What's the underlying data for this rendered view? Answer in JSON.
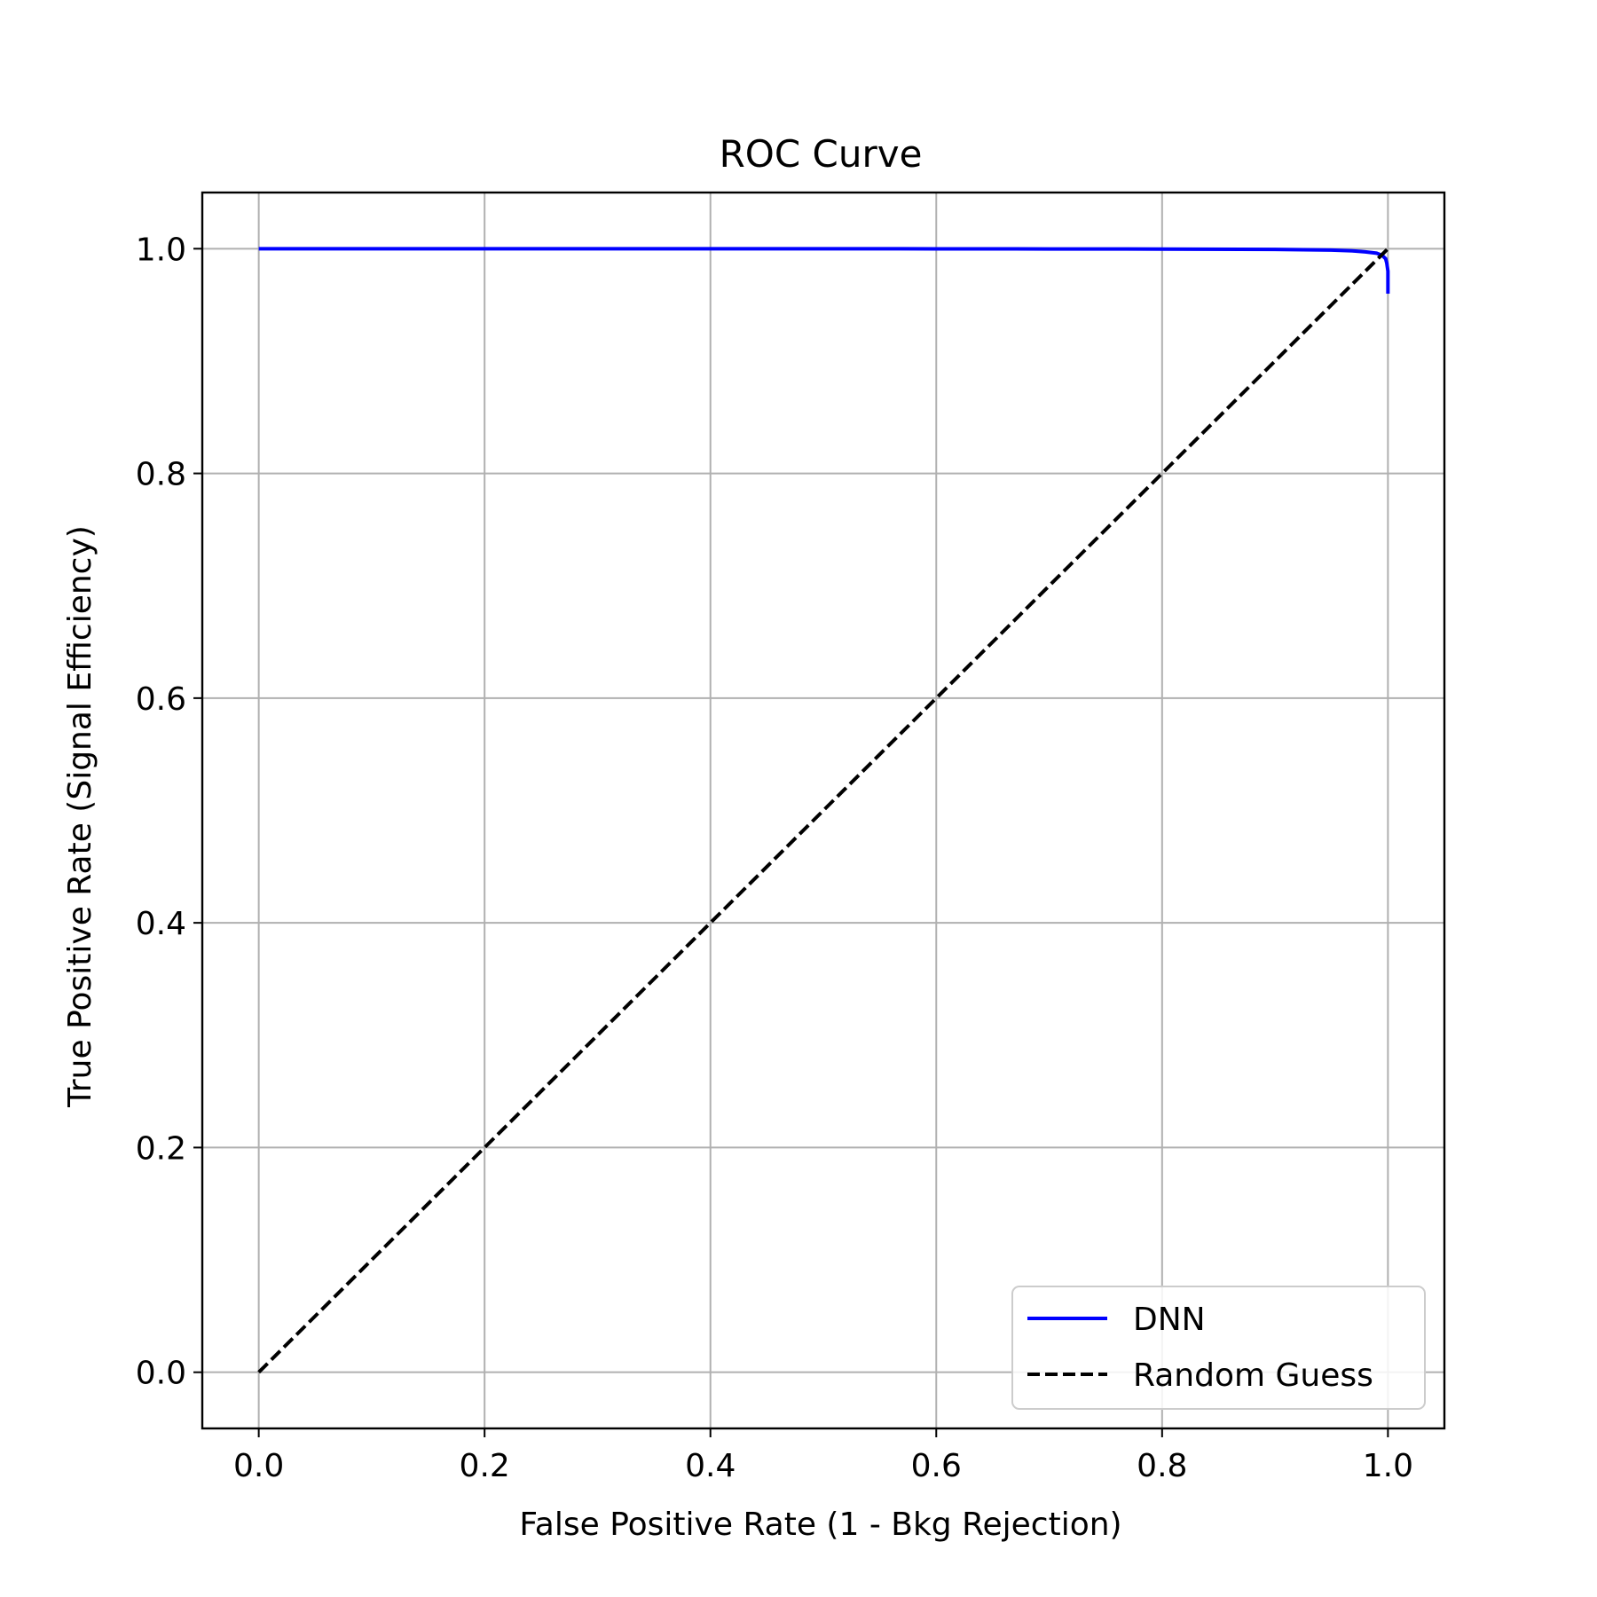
{
  "chart_data": {
    "type": "line",
    "title": "ROC Curve",
    "xlabel": "False Positive Rate (1 - Bkg Rejection)",
    "ylabel": "True Positive Rate (Signal Efficiency)",
    "xlim": [
      -0.05,
      1.05
    ],
    "ylim": [
      -0.05,
      1.05
    ],
    "xticks": [
      0.0,
      0.2,
      0.4,
      0.6,
      0.8,
      1.0
    ],
    "xtick_labels": [
      "0.0",
      "0.2",
      "0.4",
      "0.6",
      "0.8",
      "1.0"
    ],
    "yticks": [
      0.0,
      0.2,
      0.4,
      0.6,
      0.8,
      1.0
    ],
    "ytick_labels": [
      "0.0",
      "0.2",
      "0.4",
      "0.6",
      "0.8",
      "1.0"
    ],
    "grid": true,
    "legend_position": "lower-right",
    "series": [
      {
        "name": "DNN",
        "style": "solid",
        "color": "#0000ff",
        "x": [
          0.0,
          0.1,
          0.2,
          0.3,
          0.4,
          0.5,
          0.6,
          0.7,
          0.8,
          0.9,
          0.95,
          0.97,
          0.98,
          0.99,
          0.995,
          0.998,
          0.999,
          1.0,
          1.0,
          1.0,
          1.0
        ],
        "y": [
          1.0,
          1.0,
          1.0,
          1.0,
          1.0,
          1.0,
          0.9999,
          0.9998,
          0.9997,
          0.9994,
          0.9988,
          0.998,
          0.9972,
          0.996,
          0.994,
          0.991,
          0.987,
          0.98,
          0.97,
          0.965,
          0.96
        ]
      },
      {
        "name": "Random Guess",
        "style": "dashed",
        "color": "#000000",
        "x": [
          0.0,
          1.0
        ],
        "y": [
          0.0,
          1.0
        ]
      }
    ]
  }
}
